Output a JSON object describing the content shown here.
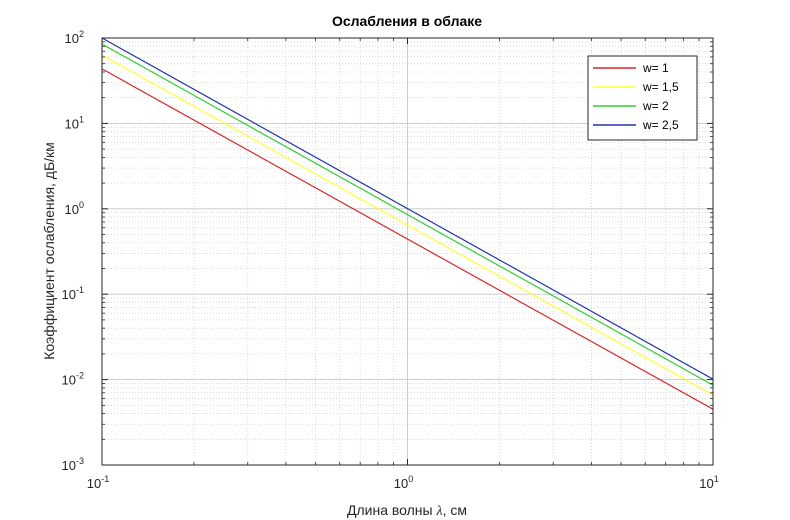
{
  "chart_data": {
    "type": "line",
    "title": "Ослабления в облаке",
    "xlabel": "Длина волны λ, см",
    "xlabel_prefix": "Длина волны ",
    "xlabel_symbol": "λ",
    "xlabel_suffix": ", см",
    "ylabel": "Коэффициент ослабления, дБ/км",
    "x_scale": "log",
    "y_scale": "log",
    "xlim": [
      0.1,
      10
    ],
    "ylim": [
      0.001,
      100
    ],
    "x_ticks": [
      {
        "base": "10",
        "exp": "-1",
        "value": 0.1
      },
      {
        "base": "10",
        "exp": "0",
        "value": 1
      },
      {
        "base": "10",
        "exp": "1",
        "value": 10
      }
    ],
    "y_ticks": [
      {
        "base": "10",
        "exp": "-3",
        "value": 0.001
      },
      {
        "base": "10",
        "exp": "-2",
        "value": 0.01
      },
      {
        "base": "10",
        "exp": "-1",
        "value": 0.1
      },
      {
        "base": "10",
        "exp": "0",
        "value": 1
      },
      {
        "base": "10",
        "exp": "1",
        "value": 10
      },
      {
        "base": "10",
        "exp": "2",
        "value": 100
      }
    ],
    "grid": true,
    "minor_grid": true,
    "legend_position": "top-right",
    "series": [
      {
        "name": "w= 1",
        "color": "#d62728",
        "x": [
          0.1,
          10
        ],
        "y": [
          43.5,
          0.0045
        ]
      },
      {
        "name": " w= 1,5",
        "color": "#ffff33",
        "x": [
          0.1,
          10
        ],
        "y": [
          63,
          0.0066
        ]
      },
      {
        "name": "w= 2",
        "color": "#33cc33",
        "x": [
          0.1,
          10
        ],
        "y": [
          85,
          0.0086
        ]
      },
      {
        "name": "w= 2,5",
        "color": "#2233aa",
        "x": [
          0.1,
          10
        ],
        "y": [
          100,
          0.0101
        ]
      }
    ]
  }
}
